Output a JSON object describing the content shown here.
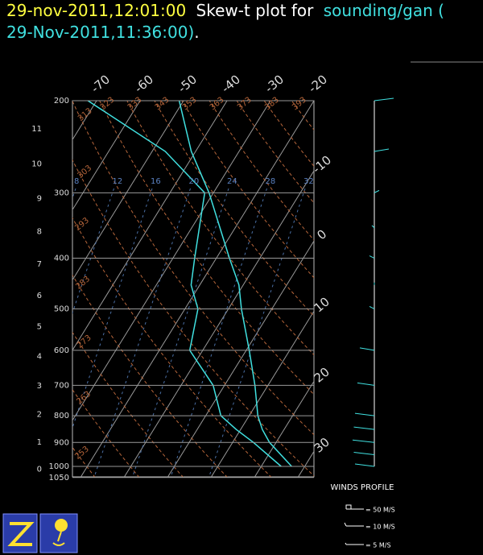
{
  "title_parts": [
    "29-nov-2011,12:01:00",
    "Skew-t plot for",
    "sounding/gan (",
    "29-Nov-2011,11:36:00)",
    "."
  ],
  "chart_data": {
    "type": "skew-t",
    "pressure": [
      1000,
      900,
      850,
      800,
      700,
      600,
      500,
      450,
      400,
      300,
      250,
      200
    ],
    "series": [
      {
        "name": "temperature",
        "color": "#40e0e0",
        "values": [
          27,
          18.5,
          15,
          12,
          7,
          0.7,
          -7,
          -11,
          -17,
          -31,
          -41,
          -51
        ]
      },
      {
        "name": "dewpoint",
        "color": "#40e0e0",
        "values": [
          24.6,
          14.8,
          9,
          3.5,
          -2.6,
          -13,
          -17,
          -22,
          -25,
          -32,
          -47,
          -72
        ]
      }
    ],
    "ylim": [
      1050,
      200
    ],
    "yticks": [
      200,
      300,
      400,
      500,
      600,
      700,
      800,
      900,
      1000,
      1050
    ],
    "height_ticks": [
      0,
      1,
      2,
      3,
      4,
      5,
      6,
      7,
      8,
      9,
      10,
      11
    ],
    "tticks": [
      -70,
      -60,
      -50,
      -40,
      -30,
      -20,
      -10,
      0,
      10,
      20,
      30
    ],
    "dry_adiabats": [
      253,
      263,
      273,
      283,
      293,
      303,
      313,
      323,
      333,
      343,
      353,
      363,
      373,
      383,
      393
    ],
    "mixing_ratio_labels": [
      8,
      12,
      16,
      20,
      24,
      28,
      32
    ],
    "grid": true,
    "winds": {
      "title": "WINDS PROFILE",
      "pressure": [
        1000,
        950,
        900,
        850,
        800,
        700,
        600,
        500,
        450,
        400,
        350,
        300,
        250,
        200
      ],
      "u": [
        -8,
        -8.5,
        -9,
        -8.5,
        -8,
        -7,
        -6,
        -2,
        0,
        -2,
        -1,
        2,
        6,
        8
      ],
      "legend": [
        "= 50 M/S",
        "= 10 M/S",
        "= 5 M/S"
      ]
    }
  }
}
